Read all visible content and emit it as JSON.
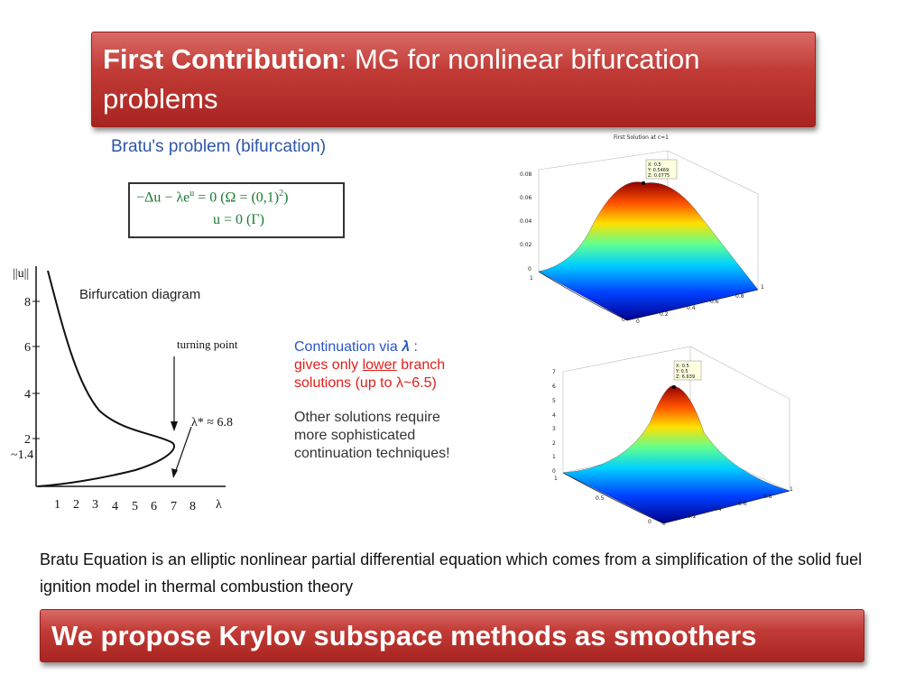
{
  "title": {
    "bold": "First Contribution",
    "rest": ": MG for nonlinear bifurcation problems"
  },
  "bratu_heading": "Bratu's problem (bifurcation)",
  "equation": {
    "line1": "−Δu − λe",
    "line1_sup": "u",
    "line1_rest": " = 0   (Ω = (0,1)",
    "line1_sup2": "2",
    "line1_end": ")",
    "line2": "u = 0   (Γ)"
  },
  "bifurcation": {
    "ylabel": "||u||",
    "title": "Birfurcation diagram",
    "turning_label": "turning point",
    "lambda_star": "λ* ≈ 6.8",
    "xlabel": "λ",
    "y_ticks": [
      "8",
      "6",
      "4",
      "2",
      "~1.4"
    ],
    "x_ticks": [
      "1",
      "2",
      "3",
      "4",
      "5",
      "6",
      "7",
      "8"
    ]
  },
  "continuation": {
    "line1": "Continuation via ",
    "lambda": "λ",
    "line1_end": " :",
    "line2_a": "gives only ",
    "line2_b": "lower",
    "line2_c": " branch",
    "line3": "solutions (up to λ~6.5)",
    "line4": "Other solutions require",
    "line5": "more sophisticated",
    "line6": "continuation techniques!"
  },
  "plot1": {
    "title": "First Solution at c=1",
    "tip": [
      "X: 0.5",
      "Y: 0.5469",
      "Z: 0.0775"
    ],
    "z_ticks": [
      "0.08",
      "0.06",
      "0.04",
      "0.02",
      "0"
    ],
    "x_ticks": [
      "0",
      "0.2",
      "0.4",
      "0.6",
      "0.8",
      "1"
    ],
    "y_ticks": [
      "1",
      "0"
    ]
  },
  "plot2": {
    "tip": [
      "X: 0.5",
      "Y: 0.5",
      "Z: 6.639"
    ],
    "z_ticks": [
      "7",
      "6",
      "5",
      "4",
      "3",
      "2",
      "1",
      "0"
    ],
    "x_ticks": [
      "0",
      "0.2",
      "0.4",
      "0.6",
      "0.8",
      "1"
    ],
    "y_ticks": [
      "1",
      "0.5",
      "0"
    ]
  },
  "description": "Bratu Equation is an elliptic nonlinear partial differential equation which comes from a simplification of the solid fuel ignition model in thermal combustion theory",
  "footer": "We propose Krylov subspace methods as smoothers"
}
